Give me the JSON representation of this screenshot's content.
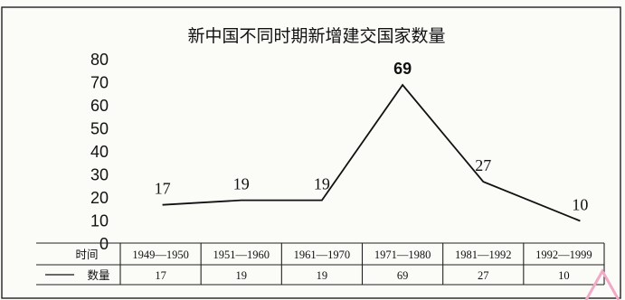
{
  "chart_data": {
    "type": "line",
    "title": "新中国不同时期新增建交国家数量",
    "categories": [
      "1949—1950",
      "1951—1960",
      "1961—1970",
      "1971—1980",
      "1981—1992",
      "1992—1999"
    ],
    "series": [
      {
        "name": "数量",
        "values": [
          17,
          19,
          19,
          69,
          27,
          10
        ]
      }
    ],
    "data_labels": [
      "17",
      "19",
      "19",
      "69",
      "27",
      "10"
    ],
    "y_ticks": [
      "0",
      "10",
      "20",
      "30",
      "40",
      "50",
      "60",
      "70",
      "80"
    ],
    "ylim": [
      0,
      80
    ],
    "grid": false,
    "table": {
      "header_label": "时间",
      "row_label": "数量",
      "values": [
        "17",
        "19",
        "19",
        "69",
        "27",
        "10"
      ]
    },
    "legend": "data table, bottom"
  }
}
